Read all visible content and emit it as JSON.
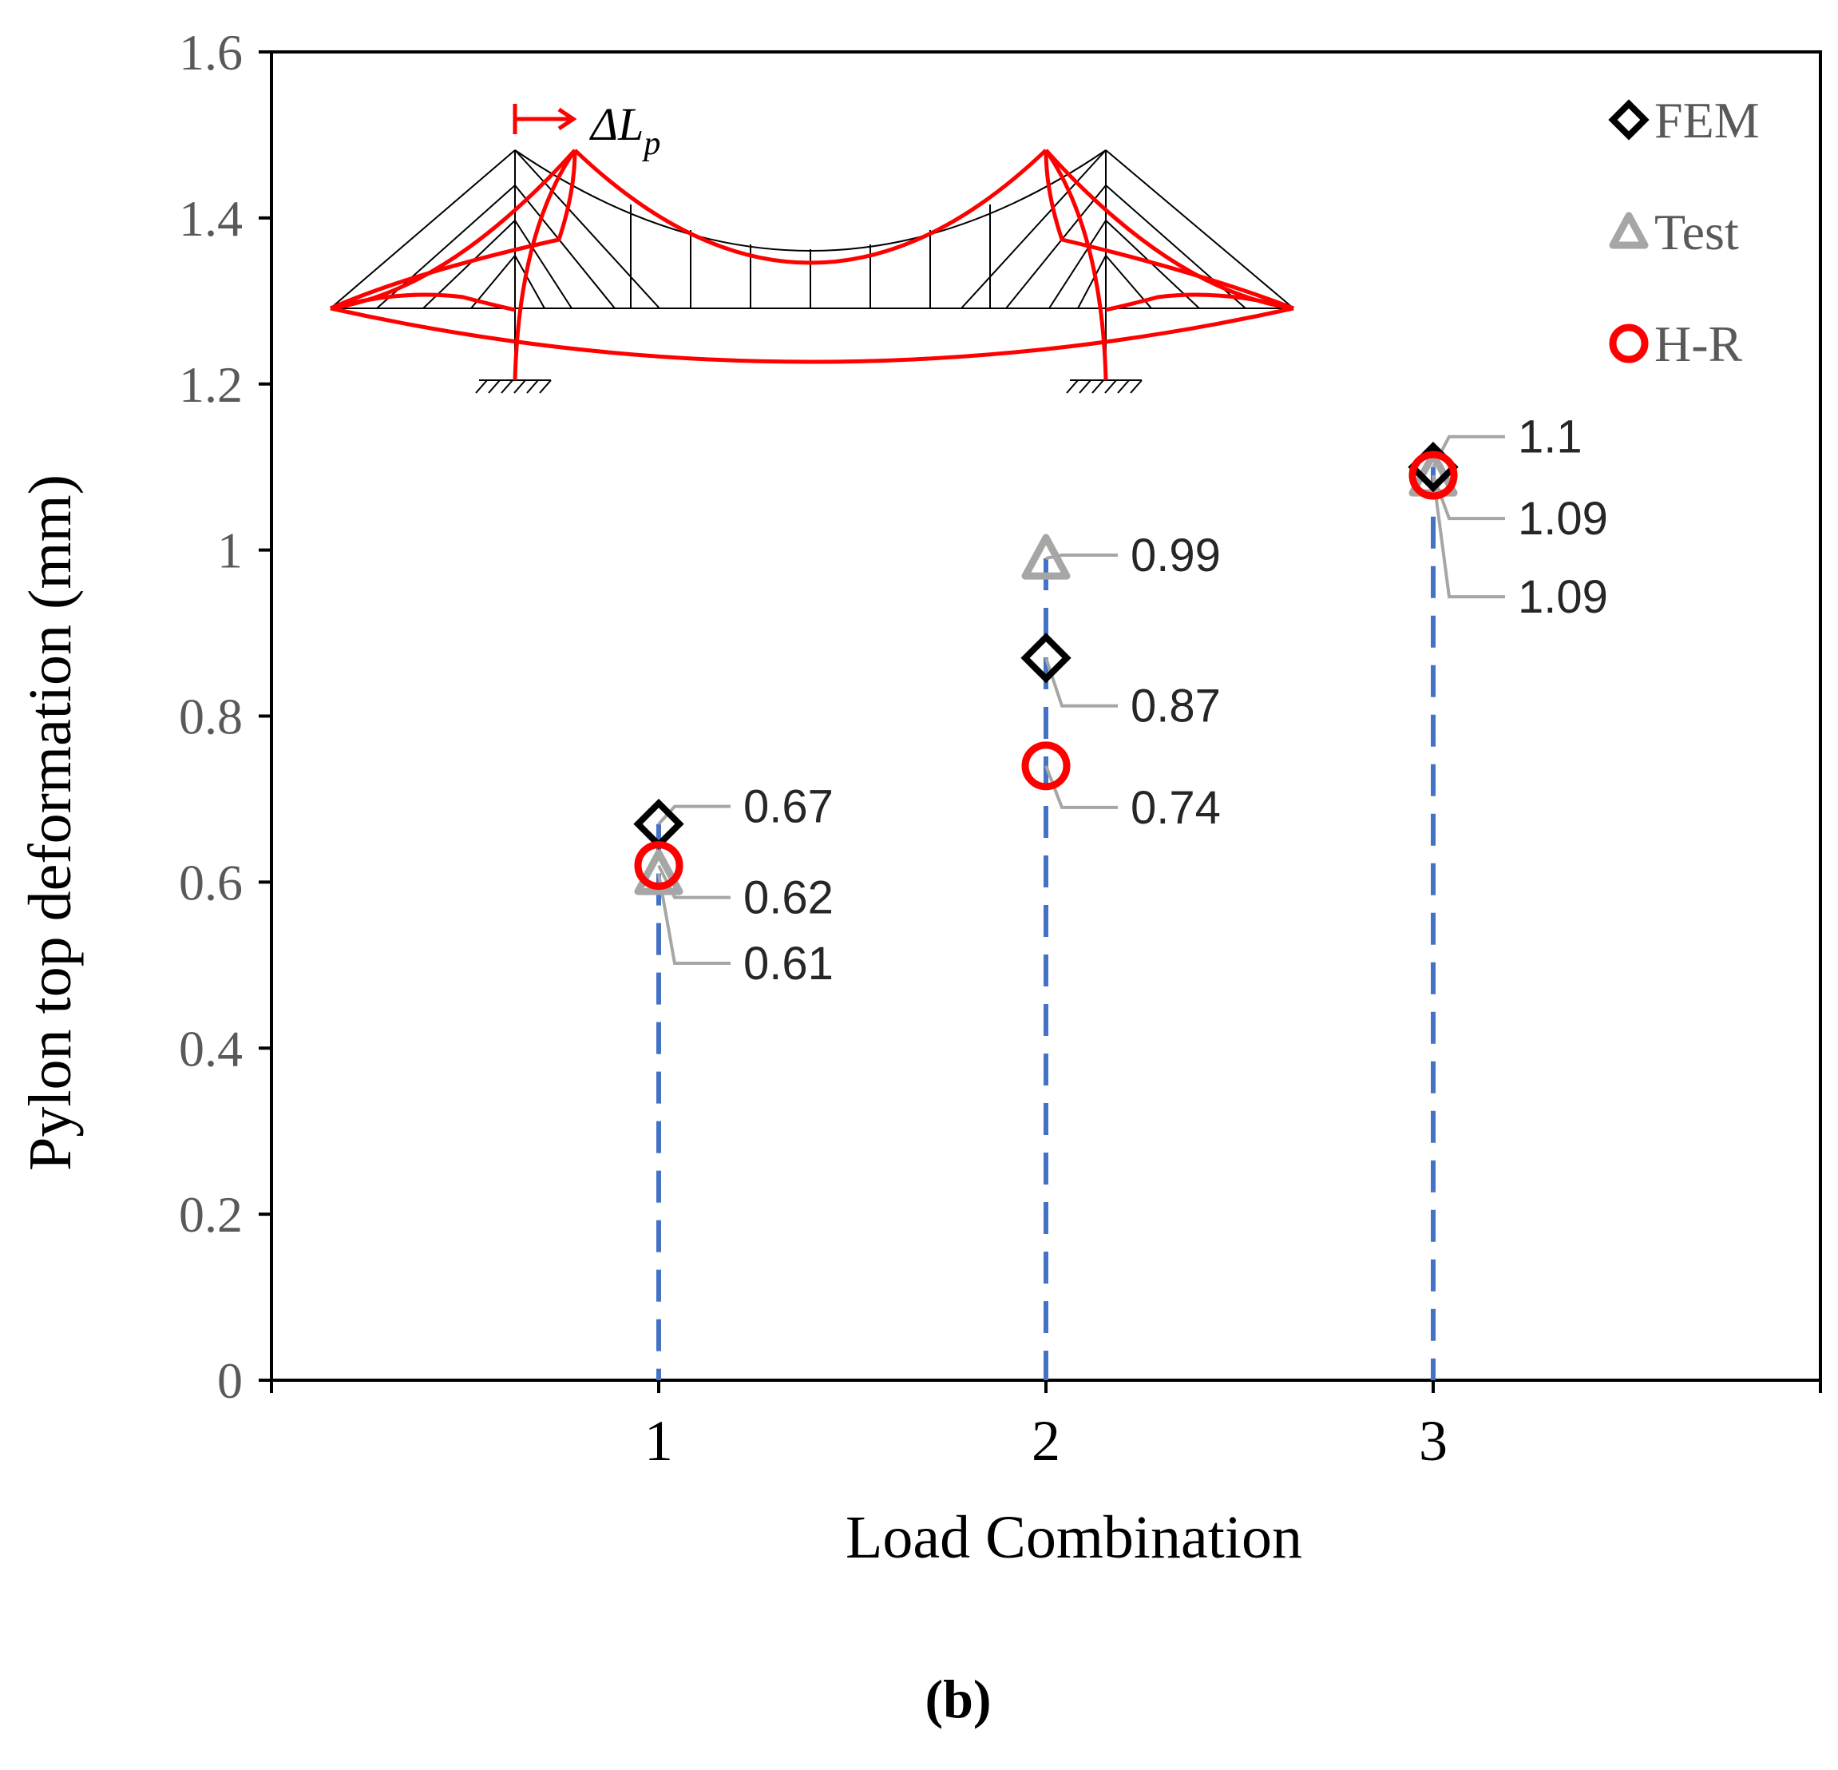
{
  "figure_label": "(b)",
  "chart_data": {
    "type": "scatter",
    "xlabel": "Load Combination",
    "ylabel": "Pylon top deformation (mm)",
    "xlim": [
      0,
      4
    ],
    "ylim": [
      0,
      1.6
    ],
    "x_ticks": [
      1,
      2,
      3
    ],
    "x_tick_labels": [
      "1",
      "2",
      "3"
    ],
    "y_ticks": [
      0,
      0.2,
      0.4,
      0.6,
      0.8,
      1.0,
      1.2,
      1.4,
      1.6
    ],
    "y_tick_labels": [
      "0",
      "0.2",
      "0.4",
      "0.6",
      "0.8",
      "1",
      "1.2",
      "1.4",
      "1.6"
    ],
    "grid": false,
    "legend_position": "top-right",
    "drop_line_color": "#4472C4",
    "series": [
      {
        "name": "FEM",
        "marker": "diamond",
        "color": "#000000",
        "x": [
          1,
          2,
          3
        ],
        "y": [
          0.67,
          0.87,
          1.1
        ],
        "labels": [
          "0.67",
          "0.87",
          "1.1"
        ]
      },
      {
        "name": "Test",
        "marker": "triangle",
        "color": "#A6A6A6",
        "x": [
          1,
          2,
          3
        ],
        "y": [
          0.61,
          0.99,
          1.09
        ],
        "labels": [
          "0.61",
          "0.99",
          "1.09"
        ]
      },
      {
        "name": "H-R",
        "marker": "circle",
        "color": "#FF0000",
        "x": [
          1,
          2,
          3
        ],
        "y": [
          0.62,
          0.74,
          1.09
        ],
        "labels": [
          "0.62",
          "0.74",
          "1.09"
        ]
      }
    ],
    "inset_annotation": "ΔL",
    "inset_annotation_sub": "p"
  }
}
